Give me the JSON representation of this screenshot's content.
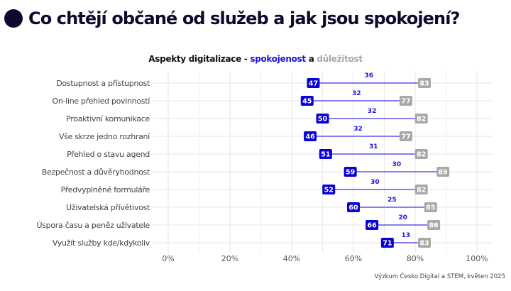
{
  "header": {
    "title": "Co chtějí občané od služeb a jak jsou spokojení?"
  },
  "subtitle": {
    "part1": "Aspekty digitalizace - ",
    "part2": "spokojenost",
    "part3": " a ",
    "part4": "důležitost"
  },
  "source": "Výzkum Česko.Digital a STEM, květen 2025",
  "colors": {
    "satisfaction": "#0a00d8",
    "importance": "#a8a8a8",
    "connector": "#3b35e6",
    "gap_label": "#1a12e0",
    "grid": "#e6e6e6",
    "title": "#0d0a2c"
  },
  "chart_data": {
    "type": "dumbbell",
    "title": "Aspekty digitalizace - spokojenost a důležitost",
    "xlabel": "",
    "ylabel": "",
    "xlim": [
      0,
      100
    ],
    "x_ticks": [
      "0%",
      "20%",
      "40%",
      "60%",
      "80%",
      "100%"
    ],
    "x_tick_values": [
      0,
      20,
      40,
      60,
      80,
      100
    ],
    "grid": true,
    "categories": [
      "Dostupnost a přístupnost",
      "On-line přehled povinností",
      "Proaktivní komunikace",
      "Vše skrze jedno rozhraní",
      "Přehled o stavu agend",
      "Bezpečnost a důvěryhodnost",
      "Předvyplněné formuláře",
      "Uživatelská přívětivost",
      "Úspora času a peněz uživatele",
      "Využít služby kde/kdykoliv"
    ],
    "series": [
      {
        "name": "spokojenost",
        "values": [
          47,
          45,
          50,
          46,
          51,
          59,
          52,
          60,
          66,
          71
        ]
      },
      {
        "name": "důležitost",
        "values": [
          83,
          77,
          82,
          77,
          82,
          89,
          82,
          85,
          86,
          83
        ]
      }
    ],
    "gap_labels": [
      36,
      32,
      32,
      32,
      31,
      30,
      30,
      25,
      20,
      13
    ]
  }
}
